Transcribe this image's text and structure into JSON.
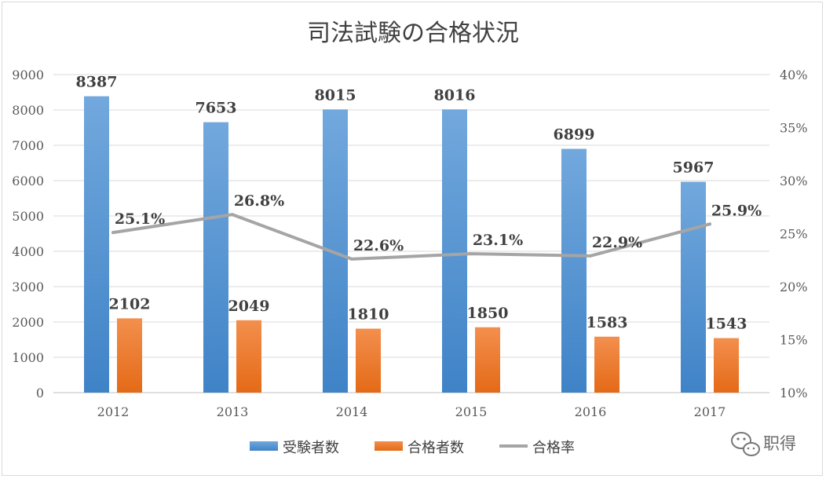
{
  "chart_data": {
    "type": "bar",
    "title": "司法試験の合格状況",
    "categories": [
      "2012",
      "2013",
      "2014",
      "2015",
      "2016",
      "2017"
    ],
    "series": [
      {
        "name": "受験者数",
        "kind": "bar",
        "axis": "left",
        "color": "#5b9bd5",
        "values": [
          8387,
          7653,
          8015,
          8016,
          6899,
          5967
        ],
        "labels": [
          "8387",
          "7653",
          "8015",
          "8016",
          "6899",
          "5967"
        ]
      },
      {
        "name": "合格者数",
        "kind": "bar",
        "axis": "left",
        "color": "#ed7d31",
        "values": [
          2102,
          2049,
          1810,
          1850,
          1583,
          1543
        ],
        "labels": [
          "2102",
          "2049",
          "1810",
          "1850",
          "1583",
          "1543"
        ]
      },
      {
        "name": "合格率",
        "kind": "line",
        "axis": "right",
        "color": "#a5a5a5",
        "values": [
          25.1,
          26.8,
          22.6,
          23.1,
          22.9,
          25.9
        ],
        "labels": [
          "25.1%",
          "26.8%",
          "22.6%",
          "23.1%",
          "22.9%",
          "25.9%"
        ]
      }
    ],
    "y_left": {
      "min": 0,
      "max": 9000,
      "ticks": [
        "0",
        "1000",
        "2000",
        "3000",
        "4000",
        "5000",
        "6000",
        "7000",
        "8000",
        "9000"
      ]
    },
    "y_right": {
      "min": 10,
      "max": 40,
      "ticks": [
        "10%",
        "15%",
        "20%",
        "25%",
        "30%",
        "35%",
        "40%"
      ]
    },
    "grid": true,
    "legend": "bottom"
  },
  "watermark": {
    "text": "职得"
  }
}
